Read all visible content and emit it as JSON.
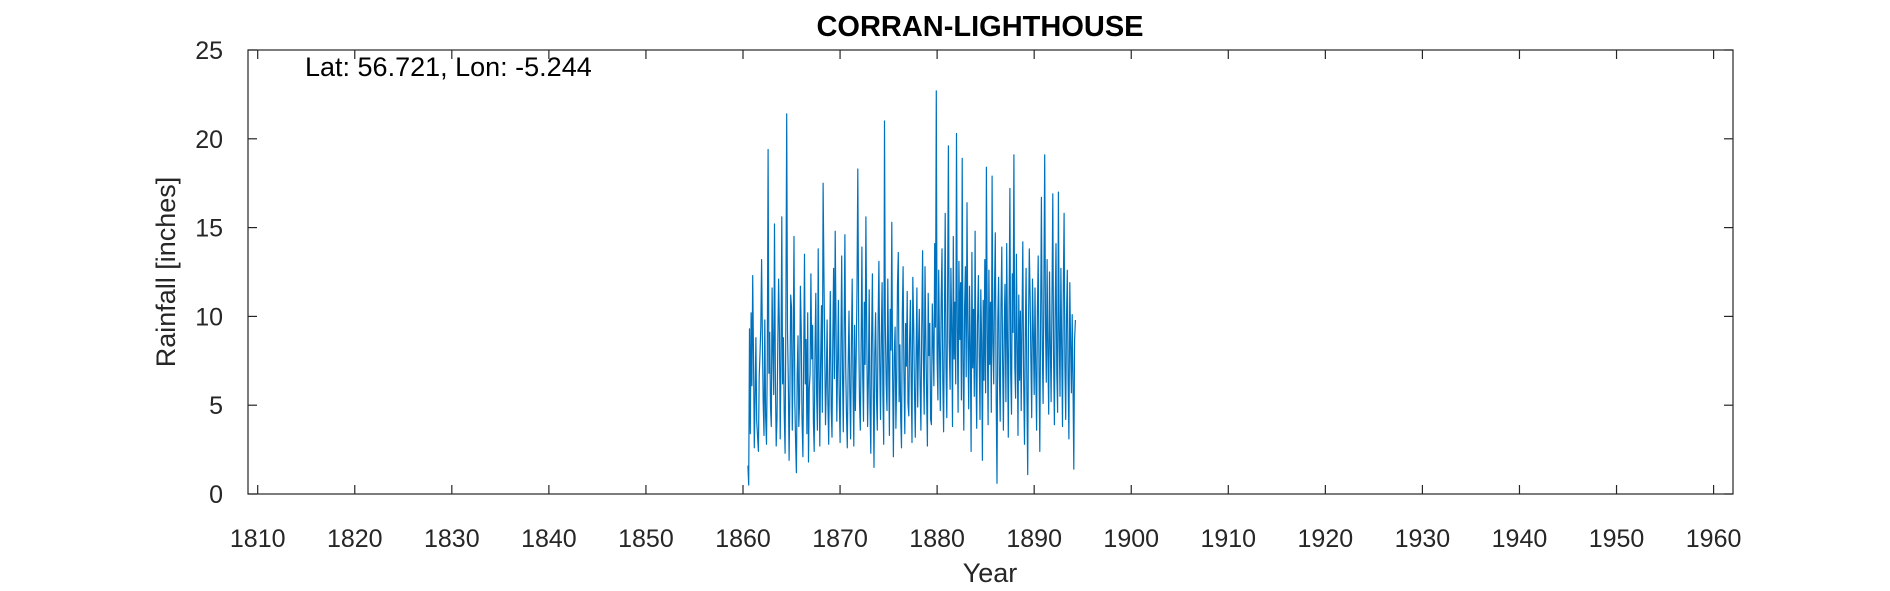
{
  "chart_data": {
    "type": "line",
    "title": "CORRAN-LIGHTHOUSE",
    "xlabel": "Year",
    "ylabel": "Rainfall [inches]",
    "annotation": "Lat: 56.721, Lon: -5.244",
    "xlim": [
      1809,
      1962
    ],
    "ylim": [
      0,
      25
    ],
    "x_ticks": [
      1810,
      1820,
      1830,
      1840,
      1850,
      1860,
      1870,
      1880,
      1890,
      1900,
      1910,
      1920,
      1930,
      1940,
      1950,
      1960
    ],
    "y_ticks": [
      0,
      5,
      10,
      15,
      20,
      25
    ],
    "grid": false,
    "line_color": "#0072BD",
    "series": [
      {
        "start_year": 1860.5,
        "step_years": 0.08333,
        "values": [
          1.6,
          0.5,
          9.3,
          3.4,
          10.2,
          6.1,
          12.3,
          7.8,
          2.6,
          5.4,
          8.8,
          4.1,
          3.2,
          2.4,
          6.6,
          7.9,
          9.4,
          13.2,
          8.7,
          5.1,
          3.3,
          9.8,
          4.4,
          2.8,
          7.5,
          19.4,
          6.8,
          9.1,
          4.9,
          3.8,
          11.6,
          8.2,
          5.6,
          15.2,
          6.4,
          2.7,
          4.2,
          8.4,
          12.1,
          9.3,
          3.1,
          7.7,
          15.6,
          6.2,
          8.8,
          4.6,
          2.3,
          10.5,
          21.4,
          9.2,
          6.4,
          1.9,
          5.8,
          11.2,
          10.5,
          3.6,
          7.4,
          14.5,
          5.3,
          2.9,
          1.2,
          6.7,
          8.9,
          3.8,
          5.2,
          11.7,
          9.4,
          4.3,
          2.1,
          7.6,
          13.5,
          6.2,
          8.7,
          3.4,
          10.2,
          1.8,
          5.9,
          6.8,
          12.4,
          7.6,
          9.5,
          4.1,
          2.4,
          8.1,
          11.3,
          5.7,
          3.6,
          13.8,
          6.9,
          2.7,
          7.4,
          10.6,
          4.6,
          17.5,
          12.6,
          8.3,
          3.9,
          6.2,
          9.8,
          5.1,
          2.8,
          7.3,
          11.4,
          4.8,
          3.2,
          8.6,
          12.7,
          6.5,
          14.8,
          9.6,
          4.1,
          7.3,
          10.9,
          5.6,
          2.9,
          8.2,
          13.4,
          6.7,
          3.5,
          9.1,
          14.6,
          7.2,
          4.4,
          2.6,
          6.9,
          10.3,
          5.8,
          3.1,
          8.4,
          12.1,
          6.3,
          2.7,
          9.5,
          4.7,
          7.8,
          11.6,
          18.3,
          9.4,
          5.2,
          3.6,
          8.1,
          13.9,
          6.7,
          4.1,
          10.8,
          7.3,
          15.6,
          9.2,
          3.8,
          6.4,
          11.5,
          4.9,
          2.3,
          8.7,
          12.4,
          6.1,
          1.5,
          7.9,
          10.2,
          5.4,
          3.6,
          9.6,
          13.1,
          7.4,
          4.2,
          8.8,
          11.9,
          5.6,
          2.8,
          21.0,
          9.6,
          6.2,
          4.7,
          12.1,
          7.5,
          3.3,
          10.4,
          8.1,
          15.3,
          6.8,
          2.1,
          7.7,
          9.4,
          3.7,
          6.5,
          11.8,
          13.6,
          5.2,
          8.4,
          4.3,
          2.6,
          10.1,
          12.8,
          6.9,
          3.4,
          9.6,
          7.2,
          11.4,
          5.1,
          4.4,
          8.7,
          10.9,
          6.3,
          2.9,
          12.2,
          9.5,
          5.7,
          3.2,
          7.8,
          11.6,
          4.9,
          8.3,
          10.4,
          6.2,
          3.6,
          9.1,
          13.7,
          7.4,
          4.5,
          12.8,
          8.9,
          5.6,
          2.7,
          11.3,
          7.8,
          9.6,
          4.2,
          3.9,
          10.7,
          8.5,
          6.1,
          14.1,
          9.4,
          22.7,
          7.6,
          5.3,
          12.6,
          8.2,
          4.7,
          10.9,
          13.8,
          6.4,
          3.5,
          9.7,
          15.8,
          7.1,
          4.3,
          11.2,
          19.6,
          8.6,
          5.9,
          12.7,
          9.3,
          3.8,
          14.5,
          7.6,
          10.8,
          6.2,
          20.3,
          9.4,
          4.6,
          13.1,
          8.7,
          11.9,
          5.3,
          18.9,
          7.4,
          3.6,
          10.5,
          12.8,
          6.6,
          16.4,
          9.2,
          4.8,
          11.7,
          8.3,
          2.4,
          13.6,
          7.1,
          10.4,
          5.5,
          14.8,
          6.9,
          3.7,
          9.6,
          12.3,
          7.8,
          4.2,
          11.5,
          8.6,
          1.9,
          10.9,
          6.4,
          13.2,
          5.7,
          18.4,
          9.1,
          3.9,
          12.6,
          7.3,
          10.8,
          4.6,
          17.9,
          8.5,
          6.2,
          11.4,
          14.7,
          5.3,
          0.6,
          9.8,
          12.2,
          6.7,
          4.1,
          10.6,
          13.9,
          7.5,
          3.6,
          9.3,
          11.8,
          5.2,
          14.1,
          8.4,
          3.2,
          10.7,
          17.2,
          6.8,
          4.5,
          12.4,
          9.1,
          19.1,
          7.2,
          5.4,
          13.5,
          8.6,
          3.3,
          11.2,
          6.4,
          10.3,
          4.7,
          9.6,
          14.2,
          6.1,
          2.8,
          8.9,
          12.7,
          5.6,
          1.1,
          9.4,
          13.8,
          11.2,
          7.5,
          4.3,
          12.1,
          8.8,
          5.6,
          11.6,
          6.7,
          3.6,
          10.3,
          13.4,
          7.2,
          2.4,
          9.7,
          16.7,
          8.2,
          5.1,
          11.8,
          19.1,
          9.4,
          6.3,
          13.2,
          7.8,
          4.5,
          12.5,
          8.6,
          5.2,
          11.1,
          16.9,
          7.6,
          3.9,
          10.4,
          14.1,
          6.8,
          4.6,
          17.0,
          9.2,
          5.5,
          12.7,
          8.1,
          3.8,
          11.4,
          15.8,
          7.3,
          4.2,
          9.9,
          12.6,
          6.5,
          3.1,
          11.9,
          8.4,
          5.7,
          10.1,
          6.3,
          1.4,
          8.7,
          9.8
        ]
      }
    ]
  }
}
